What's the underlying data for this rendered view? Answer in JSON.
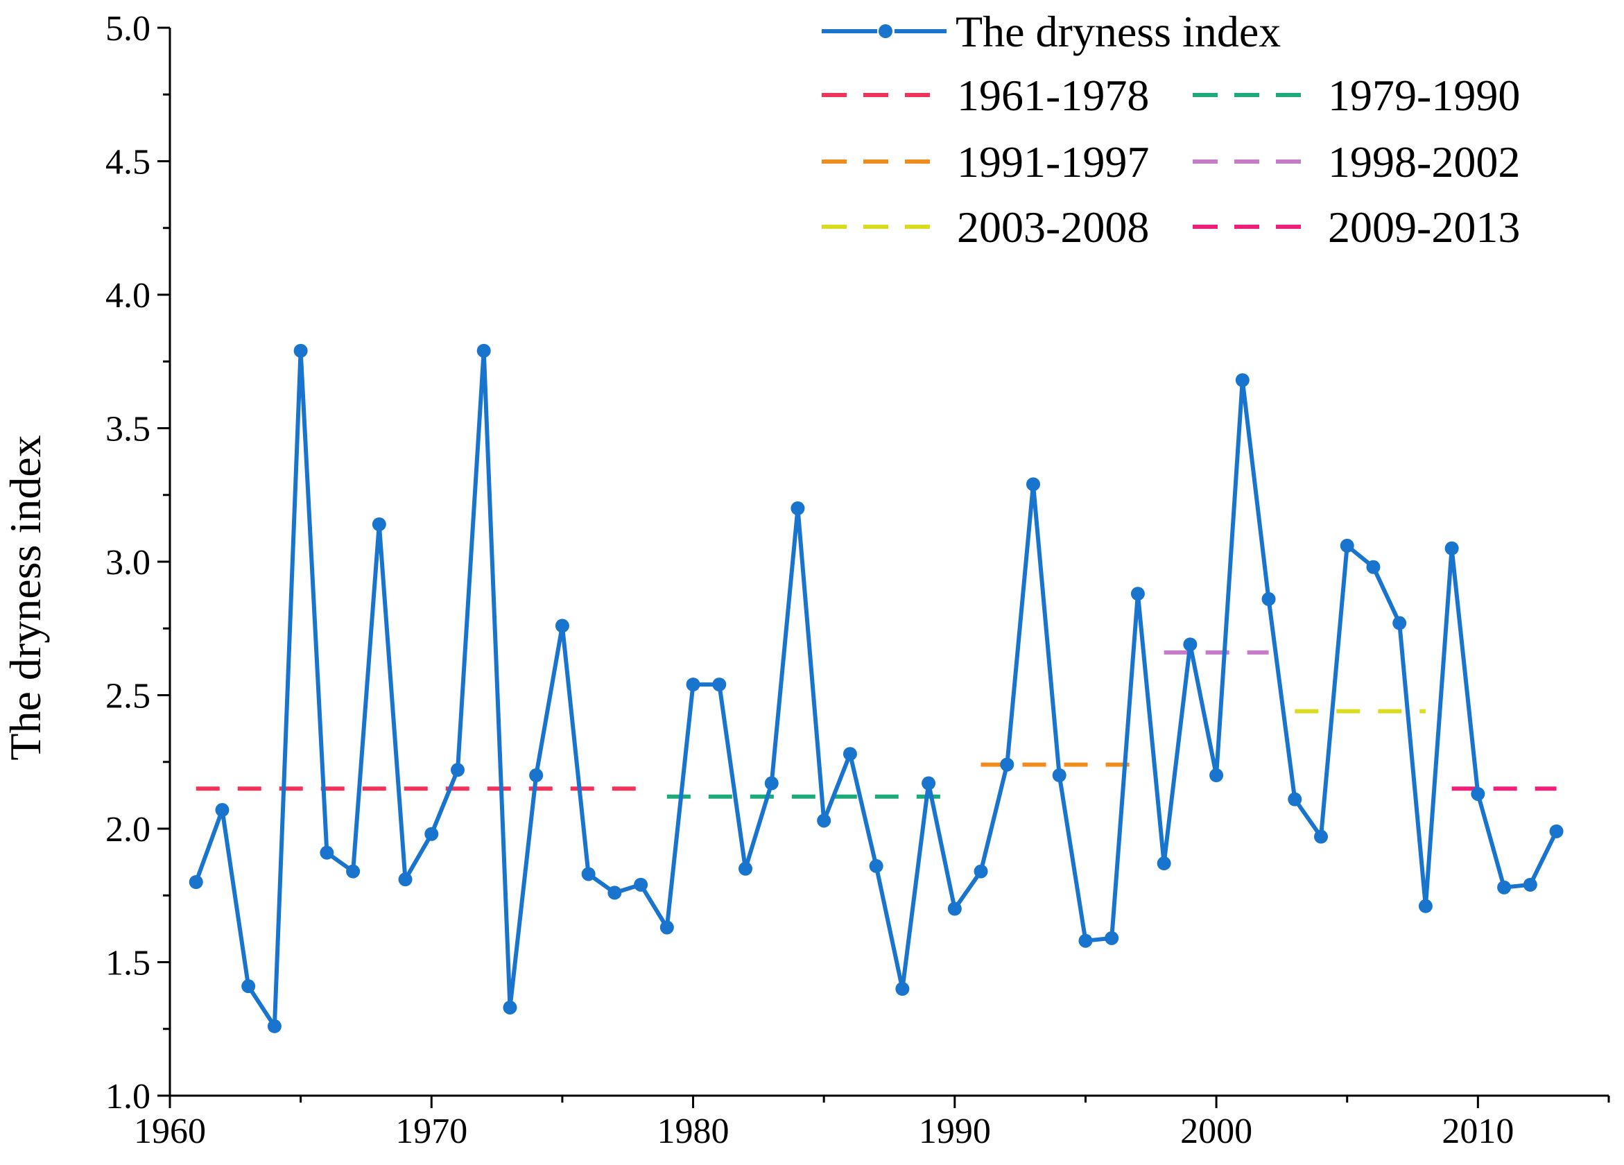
{
  "chart_data": {
    "type": "line",
    "title": "",
    "xlabel": "",
    "ylabel": "The dryness index",
    "xlim": [
      1960,
      2015
    ],
    "ylim": [
      1.0,
      5.0
    ],
    "x_ticks": [
      1960,
      1970,
      1980,
      1990,
      2000,
      2010
    ],
    "y_ticks": [
      "1.0",
      "1.5",
      "2.0",
      "2.5",
      "3.0",
      "3.5",
      "4.0",
      "4.5",
      "5.0"
    ],
    "grid": false,
    "legend_position": "top-right",
    "series": [
      {
        "name": "The dryness index",
        "color": "#1874CD",
        "x": [
          1961,
          1962,
          1963,
          1964,
          1965,
          1966,
          1967,
          1968,
          1969,
          1970,
          1971,
          1972,
          1973,
          1974,
          1975,
          1976,
          1977,
          1978,
          1979,
          1980,
          1981,
          1982,
          1983,
          1984,
          1985,
          1986,
          1987,
          1988,
          1989,
          1990,
          1991,
          1992,
          1993,
          1994,
          1995,
          1996,
          1997,
          1998,
          1999,
          2000,
          2001,
          2002,
          2003,
          2004,
          2005,
          2006,
          2007,
          2008,
          2009,
          2010,
          2011,
          2012,
          2013
        ],
        "values": [
          1.8,
          2.07,
          1.41,
          1.26,
          3.79,
          1.91,
          1.84,
          3.14,
          1.81,
          1.98,
          2.22,
          3.79,
          1.33,
          2.2,
          2.76,
          1.83,
          1.76,
          1.79,
          1.63,
          2.54,
          2.54,
          1.85,
          2.17,
          3.2,
          2.03,
          2.28,
          1.86,
          1.4,
          2.17,
          1.7,
          1.84,
          2.24,
          3.29,
          2.2,
          1.58,
          1.59,
          2.88,
          1.87,
          2.69,
          2.2,
          3.68,
          2.86,
          2.11,
          1.97,
          3.06,
          2.98,
          2.77,
          1.71,
          3.05,
          2.13,
          1.78,
          1.79,
          1.99
        ]
      }
    ],
    "period_means": [
      {
        "name": "1961-1978",
        "start": 1961,
        "end": 1978,
        "value": 2.15,
        "color": "#F0335A"
      },
      {
        "name": "1979-1990",
        "start": 1979,
        "end": 1990,
        "value": 2.12,
        "color": "#1DAA78"
      },
      {
        "name": "1991-1997",
        "start": 1991,
        "end": 1997,
        "value": 2.24,
        "color": "#F08C1E"
      },
      {
        "name": "1998-2002",
        "start": 1998,
        "end": 2002,
        "value": 2.66,
        "color": "#C67CC6"
      },
      {
        "name": "2003-2008",
        "start": 2003,
        "end": 2008,
        "value": 2.44,
        "color": "#DCDC1E"
      },
      {
        "name": "2009-2013",
        "start": 2009,
        "end": 2013,
        "value": 2.15,
        "color": "#F01E78"
      }
    ]
  }
}
